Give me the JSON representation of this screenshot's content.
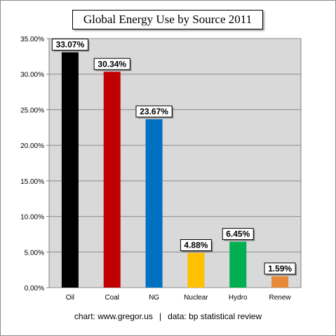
{
  "chart_data": {
    "type": "bar",
    "title": "Global Energy Use by Source 2011",
    "categories": [
      "Oil",
      "Coal",
      "NG",
      "Nuclear",
      "Hydro",
      "Renew"
    ],
    "values": [
      33.07,
      30.34,
      23.67,
      4.88,
      6.45,
      1.59
    ],
    "value_labels": [
      "33.07%",
      "30.34%",
      "23.67%",
      "4.88%",
      "6.45%",
      "1.59%"
    ],
    "colors": [
      "#000000",
      "#c00000",
      "#0070c0",
      "#ffc000",
      "#00b050",
      "#e8893a"
    ],
    "ylim": [
      0,
      35
    ],
    "yticks": [
      0,
      5,
      10,
      15,
      20,
      25,
      30,
      35
    ],
    "ytick_labels": [
      "0.00%",
      "5.00%",
      "10.00%",
      "15.00%",
      "20.00%",
      "25.00%",
      "30.00%",
      "35.00%"
    ],
    "xlabel": "",
    "ylabel": "",
    "grid": true,
    "plot_background": "#d9d9d9",
    "legend": "none"
  },
  "footer": {
    "credit": "chart: www.gregor.us",
    "separator": "|",
    "source": "data: bp statistical review"
  }
}
